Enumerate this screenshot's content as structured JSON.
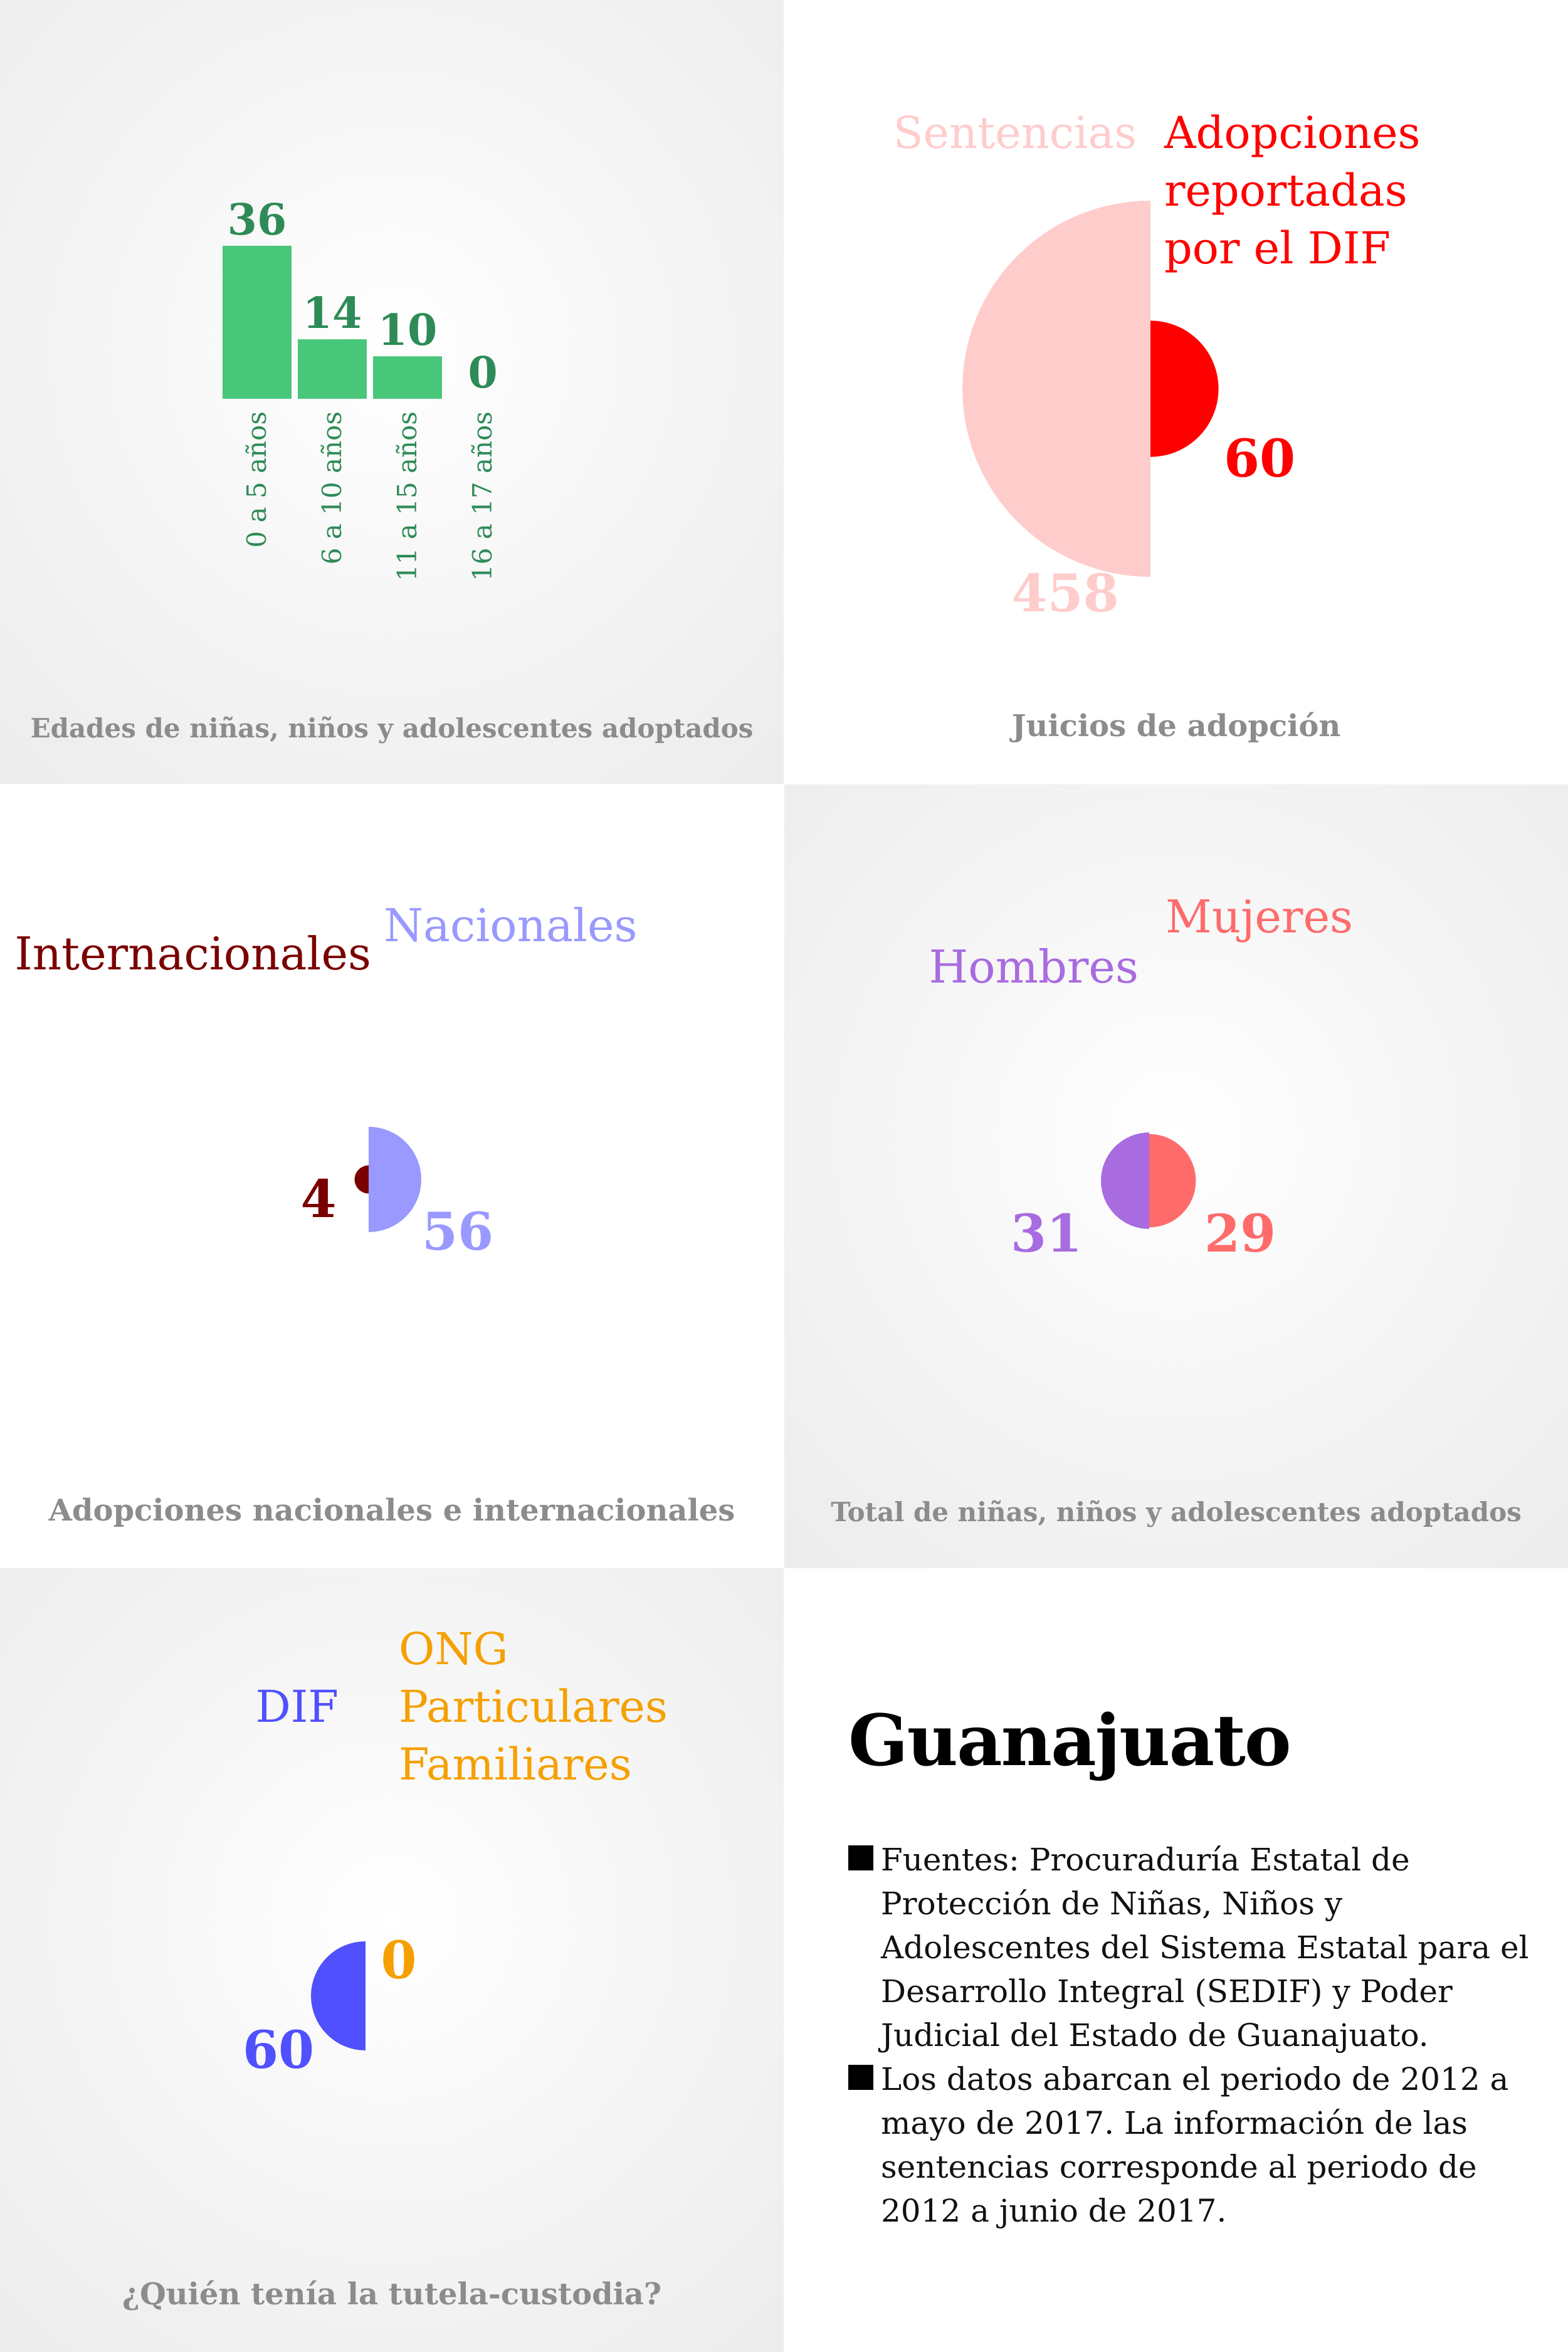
{
  "colors": {
    "green": "#48c67a",
    "green_text": "#2e8b57",
    "sentencias": "#ffcccc",
    "dif_adop": "#ff0000",
    "internacionales": "#7a0000",
    "nacionales": "#9999ff",
    "hombres": "#a86be0",
    "mujeres": "#ff6b6b",
    "dif_custody": "#5050ff",
    "ong": "#f5a000",
    "caption": "#8c8c8c"
  },
  "panels": {
    "ages": {
      "caption": "Edades de niñas, niños y adolescentes adoptados"
    },
    "trials": {
      "caption": "Juicios de adopción"
    },
    "nat_int": {
      "caption": "Adopciones nacionales e internacionales"
    },
    "gender": {
      "caption": "Total de niñas, niños y adolescentes adoptados"
    },
    "custody": {
      "caption": "¿Quién tenía la tutela-custodia?"
    }
  },
  "info": {
    "title": "Guanajuato",
    "notes": [
      "Fuentes: Procuraduría Estatal de Protección de Niñas, Niños y Adolescentes del Sistema Estatal para el Desarrollo Integral (SEDIF) y Poder Judicial del Estado de Guanajuato.",
      "Los datos abarcan el periodo de 2012 a mayo de 2017. La información de las sentencias corresponde al periodo de 2012 a junio de 2017."
    ]
  },
  "chart_data": [
    {
      "type": "bar",
      "title": "Edades de niñas, niños y adolescentes adoptados",
      "categories": [
        "0 a 5 años",
        "6 a 10 años",
        "11 a 15 años",
        "16 a 17 años"
      ],
      "values": [
        36,
        14,
        10,
        0
      ],
      "value_labels": [
        "36",
        "14",
        "10",
        "0"
      ]
    },
    {
      "type": "pie",
      "title": "Juicios de adopción",
      "series": [
        {
          "name": "Sentencias",
          "value": 458,
          "label": "458",
          "label_lines": [
            "Sentencias"
          ]
        },
        {
          "name": "Adopciones reportadas por el DIF",
          "value": 60,
          "label": "60",
          "label_lines": [
            "Adopciones",
            "reportadas",
            "por el DIF"
          ]
        }
      ]
    },
    {
      "type": "pie",
      "title": "Adopciones nacionales e internacionales",
      "series": [
        {
          "name": "Internacionales",
          "value": 4,
          "label": "4",
          "label_lines": [
            "Internacionales"
          ]
        },
        {
          "name": "Nacionales",
          "value": 56,
          "label": "56",
          "label_lines": [
            "Nacionales"
          ]
        }
      ]
    },
    {
      "type": "pie",
      "title": "Total de niñas, niños y adolescentes adoptados",
      "series": [
        {
          "name": "Hombres",
          "value": 31,
          "label": "31",
          "label_lines": [
            "Hombres"
          ]
        },
        {
          "name": "Mujeres",
          "value": 29,
          "label": "29",
          "label_lines": [
            "Mujeres"
          ]
        }
      ]
    },
    {
      "type": "pie",
      "title": "¿Quién tenía la tutela-custodia?",
      "series": [
        {
          "name": "DIF",
          "value": 60,
          "label": "60",
          "label_lines": [
            "DIF"
          ]
        },
        {
          "name": "ONG / Particulares / Familiares",
          "value": 0,
          "label": "0",
          "label_lines": [
            "ONG",
            "Particulares",
            "Familiares"
          ]
        }
      ]
    }
  ]
}
